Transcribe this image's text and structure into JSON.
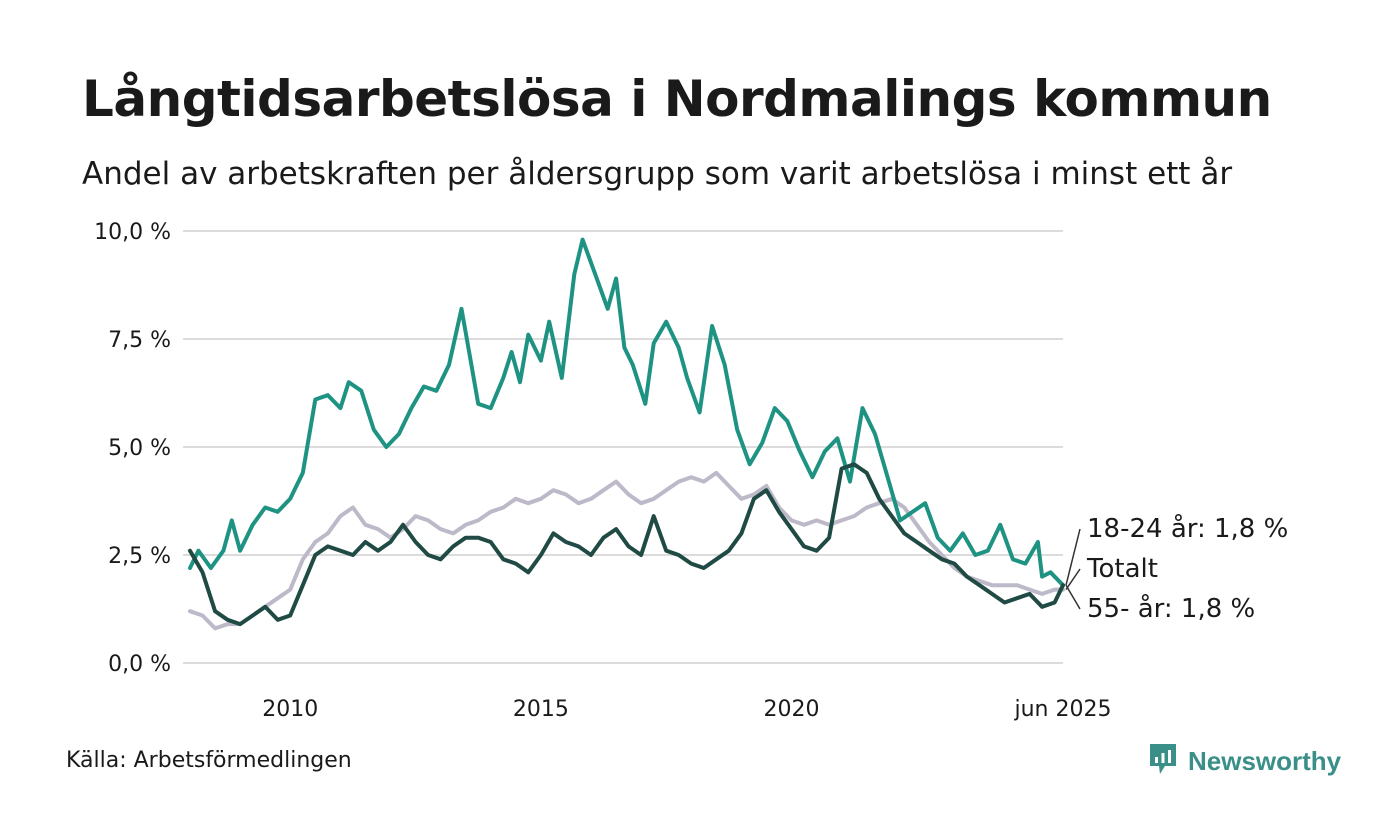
{
  "header": {
    "title": "Långtidsarbetslösa i Nordmalings kommun",
    "subtitle": "Andel av arbetskraften per åldersgrupp som varit arbetslösa i minst ett år"
  },
  "footer": {
    "source": "Källa: Arbetsförmedlingen",
    "brand": "Newsworthy"
  },
  "colors": {
    "series_18_24": "#1f9383",
    "series_total": "#bdb9c9",
    "series_55": "#204a44",
    "grid": "#dcdcdc",
    "brand": "#3a8f88"
  },
  "icons": [
    "newsworthy-logo-icon"
  ],
  "chart_data": {
    "type": "line",
    "title": "Långtidsarbetslösa i Nordmalings kommun",
    "subtitle": "Andel av arbetskraften per åldersgrupp som varit arbetslösa i minst ett år",
    "x_range": [
      "2008-01",
      "2025-06"
    ],
    "x_ticks": [
      {
        "x": "2010-01",
        "label": "2010"
      },
      {
        "x": "2015-01",
        "label": "2015"
      },
      {
        "x": "2020-01",
        "label": "2020"
      },
      {
        "x": "2025-06",
        "label": "jun 2025"
      }
    ],
    "ylim": [
      0,
      10
    ],
    "y_ticks": [
      {
        "y": 0,
        "label": "0,0 %"
      },
      {
        "y": 2.5,
        "label": "2,5 %"
      },
      {
        "y": 5,
        "label": "5,0 %"
      },
      {
        "y": 7.5,
        "label": "7,5 %"
      },
      {
        "y": 10,
        "label": "10,0 %"
      }
    ],
    "grid": true,
    "end_labels": [
      {
        "series": "18-24 år",
        "text": "18-24 år: 1,8 %"
      },
      {
        "series": "Totalt",
        "text": "Totalt"
      },
      {
        "series": "55- år",
        "text": "55- år: 1,8 %"
      }
    ],
    "series": [
      {
        "name": "Totalt",
        "points": [
          [
            "2008-01",
            1.2
          ],
          [
            "2008-04",
            1.1
          ],
          [
            "2008-07",
            0.8
          ],
          [
            "2008-10",
            0.9
          ],
          [
            "2009-01",
            0.9
          ],
          [
            "2009-04",
            1.1
          ],
          [
            "2009-07",
            1.3
          ],
          [
            "2009-10",
            1.5
          ],
          [
            "2010-01",
            1.7
          ],
          [
            "2010-04",
            2.4
          ],
          [
            "2010-07",
            2.8
          ],
          [
            "2010-10",
            3.0
          ],
          [
            "2011-01",
            3.4
          ],
          [
            "2011-04",
            3.6
          ],
          [
            "2011-07",
            3.2
          ],
          [
            "2011-10",
            3.1
          ],
          [
            "2012-01",
            2.9
          ],
          [
            "2012-04",
            3.1
          ],
          [
            "2012-07",
            3.4
          ],
          [
            "2012-10",
            3.3
          ],
          [
            "2013-01",
            3.1
          ],
          [
            "2013-04",
            3.0
          ],
          [
            "2013-07",
            3.2
          ],
          [
            "2013-10",
            3.3
          ],
          [
            "2014-01",
            3.5
          ],
          [
            "2014-04",
            3.6
          ],
          [
            "2014-07",
            3.8
          ],
          [
            "2014-10",
            3.7
          ],
          [
            "2015-01",
            3.8
          ],
          [
            "2015-04",
            4.0
          ],
          [
            "2015-07",
            3.9
          ],
          [
            "2015-10",
            3.7
          ],
          [
            "2016-01",
            3.8
          ],
          [
            "2016-04",
            4.0
          ],
          [
            "2016-07",
            4.2
          ],
          [
            "2016-10",
            3.9
          ],
          [
            "2017-01",
            3.7
          ],
          [
            "2017-04",
            3.8
          ],
          [
            "2017-07",
            4.0
          ],
          [
            "2017-10",
            4.2
          ],
          [
            "2018-01",
            4.3
          ],
          [
            "2018-04",
            4.2
          ],
          [
            "2018-07",
            4.4
          ],
          [
            "2018-10",
            4.1
          ],
          [
            "2019-01",
            3.8
          ],
          [
            "2019-04",
            3.9
          ],
          [
            "2019-07",
            4.1
          ],
          [
            "2019-10",
            3.6
          ],
          [
            "2020-01",
            3.3
          ],
          [
            "2020-04",
            3.2
          ],
          [
            "2020-07",
            3.3
          ],
          [
            "2020-10",
            3.2
          ],
          [
            "2021-01",
            3.3
          ],
          [
            "2021-04",
            3.4
          ],
          [
            "2021-07",
            3.6
          ],
          [
            "2021-10",
            3.7
          ],
          [
            "2022-01",
            3.8
          ],
          [
            "2022-04",
            3.6
          ],
          [
            "2022-07",
            3.2
          ],
          [
            "2022-10",
            2.8
          ],
          [
            "2023-01",
            2.5
          ],
          [
            "2023-04",
            2.2
          ],
          [
            "2023-07",
            2.0
          ],
          [
            "2023-10",
            1.9
          ],
          [
            "2024-01",
            1.8
          ],
          [
            "2024-04",
            1.8
          ],
          [
            "2024-07",
            1.8
          ],
          [
            "2024-10",
            1.7
          ],
          [
            "2025-01",
            1.6
          ],
          [
            "2025-04",
            1.7
          ],
          [
            "2025-06",
            1.7
          ]
        ]
      },
      {
        "name": "18-24 år",
        "points": [
          [
            "2008-01",
            2.2
          ],
          [
            "2008-03",
            2.6
          ],
          [
            "2008-06",
            2.2
          ],
          [
            "2008-09",
            2.6
          ],
          [
            "2008-11",
            3.3
          ],
          [
            "2009-01",
            2.6
          ],
          [
            "2009-04",
            3.2
          ],
          [
            "2009-07",
            3.6
          ],
          [
            "2009-10",
            3.5
          ],
          [
            "2010-01",
            3.8
          ],
          [
            "2010-04",
            4.4
          ],
          [
            "2010-07",
            6.1
          ],
          [
            "2010-10",
            6.2
          ],
          [
            "2011-01",
            5.9
          ],
          [
            "2011-03",
            6.5
          ],
          [
            "2011-06",
            6.3
          ],
          [
            "2011-09",
            5.4
          ],
          [
            "2011-12",
            5.0
          ],
          [
            "2012-03",
            5.3
          ],
          [
            "2012-06",
            5.9
          ],
          [
            "2012-09",
            6.4
          ],
          [
            "2012-12",
            6.3
          ],
          [
            "2013-03",
            6.9
          ],
          [
            "2013-06",
            8.2
          ],
          [
            "2013-08",
            7.1
          ],
          [
            "2013-10",
            6.0
          ],
          [
            "2014-01",
            5.9
          ],
          [
            "2014-04",
            6.6
          ],
          [
            "2014-06",
            7.2
          ],
          [
            "2014-08",
            6.5
          ],
          [
            "2014-10",
            7.6
          ],
          [
            "2015-01",
            7.0
          ],
          [
            "2015-03",
            7.9
          ],
          [
            "2015-06",
            6.6
          ],
          [
            "2015-09",
            9.0
          ],
          [
            "2015-11",
            9.8
          ],
          [
            "2016-02",
            9.0
          ],
          [
            "2016-05",
            8.2
          ],
          [
            "2016-07",
            8.9
          ],
          [
            "2016-09",
            7.3
          ],
          [
            "2016-11",
            6.9
          ],
          [
            "2017-02",
            6.0
          ],
          [
            "2017-04",
            7.4
          ],
          [
            "2017-07",
            7.9
          ],
          [
            "2017-10",
            7.3
          ],
          [
            "2017-12",
            6.6
          ],
          [
            "2018-03",
            5.8
          ],
          [
            "2018-06",
            7.8
          ],
          [
            "2018-09",
            6.9
          ],
          [
            "2018-12",
            5.4
          ],
          [
            "2019-03",
            4.6
          ],
          [
            "2019-06",
            5.1
          ],
          [
            "2019-09",
            5.9
          ],
          [
            "2019-12",
            5.6
          ],
          [
            "2020-03",
            4.9
          ],
          [
            "2020-06",
            4.3
          ],
          [
            "2020-09",
            4.9
          ],
          [
            "2020-12",
            5.2
          ],
          [
            "2021-03",
            4.2
          ],
          [
            "2021-06",
            5.9
          ],
          [
            "2021-09",
            5.3
          ],
          [
            "2021-12",
            4.3
          ],
          [
            "2022-03",
            3.3
          ],
          [
            "2022-06",
            3.5
          ],
          [
            "2022-09",
            3.7
          ],
          [
            "2022-12",
            2.9
          ],
          [
            "2023-03",
            2.6
          ],
          [
            "2023-06",
            3.0
          ],
          [
            "2023-09",
            2.5
          ],
          [
            "2023-12",
            2.6
          ],
          [
            "2024-03",
            3.2
          ],
          [
            "2024-06",
            2.4
          ],
          [
            "2024-09",
            2.3
          ],
          [
            "2024-12",
            2.8
          ],
          [
            "2025-01",
            2.0
          ],
          [
            "2025-03",
            2.1
          ],
          [
            "2025-06",
            1.8
          ]
        ]
      },
      {
        "name": "55- år",
        "points": [
          [
            "2008-01",
            2.6
          ],
          [
            "2008-04",
            2.1
          ],
          [
            "2008-07",
            1.2
          ],
          [
            "2008-10",
            1.0
          ],
          [
            "2009-01",
            0.9
          ],
          [
            "2009-04",
            1.1
          ],
          [
            "2009-07",
            1.3
          ],
          [
            "2009-10",
            1.0
          ],
          [
            "2010-01",
            1.1
          ],
          [
            "2010-04",
            1.8
          ],
          [
            "2010-07",
            2.5
          ],
          [
            "2010-10",
            2.7
          ],
          [
            "2011-01",
            2.6
          ],
          [
            "2011-04",
            2.5
          ],
          [
            "2011-07",
            2.8
          ],
          [
            "2011-10",
            2.6
          ],
          [
            "2012-01",
            2.8
          ],
          [
            "2012-04",
            3.2
          ],
          [
            "2012-07",
            2.8
          ],
          [
            "2012-10",
            2.5
          ],
          [
            "2013-01",
            2.4
          ],
          [
            "2013-04",
            2.7
          ],
          [
            "2013-07",
            2.9
          ],
          [
            "2013-10",
            2.9
          ],
          [
            "2014-01",
            2.8
          ],
          [
            "2014-04",
            2.4
          ],
          [
            "2014-07",
            2.3
          ],
          [
            "2014-10",
            2.1
          ],
          [
            "2015-01",
            2.5
          ],
          [
            "2015-04",
            3.0
          ],
          [
            "2015-07",
            2.8
          ],
          [
            "2015-10",
            2.7
          ],
          [
            "2016-01",
            2.5
          ],
          [
            "2016-04",
            2.9
          ],
          [
            "2016-07",
            3.1
          ],
          [
            "2016-10",
            2.7
          ],
          [
            "2017-01",
            2.5
          ],
          [
            "2017-04",
            3.4
          ],
          [
            "2017-07",
            2.6
          ],
          [
            "2017-10",
            2.5
          ],
          [
            "2018-01",
            2.3
          ],
          [
            "2018-04",
            2.2
          ],
          [
            "2018-07",
            2.4
          ],
          [
            "2018-10",
            2.6
          ],
          [
            "2019-01",
            3.0
          ],
          [
            "2019-04",
            3.8
          ],
          [
            "2019-07",
            4.0
          ],
          [
            "2019-10",
            3.5
          ],
          [
            "2020-01",
            3.1
          ],
          [
            "2020-04",
            2.7
          ],
          [
            "2020-07",
            2.6
          ],
          [
            "2020-10",
            2.9
          ],
          [
            "2021-01",
            4.5
          ],
          [
            "2021-04",
            4.6
          ],
          [
            "2021-07",
            4.4
          ],
          [
            "2021-10",
            3.8
          ],
          [
            "2022-01",
            3.4
          ],
          [
            "2022-04",
            3.0
          ],
          [
            "2022-07",
            2.8
          ],
          [
            "2022-10",
            2.6
          ],
          [
            "2023-01",
            2.4
          ],
          [
            "2023-04",
            2.3
          ],
          [
            "2023-07",
            2.0
          ],
          [
            "2023-10",
            1.8
          ],
          [
            "2024-01",
            1.6
          ],
          [
            "2024-04",
            1.4
          ],
          [
            "2024-07",
            1.5
          ],
          [
            "2024-10",
            1.6
          ],
          [
            "2025-01",
            1.3
          ],
          [
            "2025-04",
            1.4
          ],
          [
            "2025-06",
            1.8
          ]
        ]
      }
    ]
  }
}
